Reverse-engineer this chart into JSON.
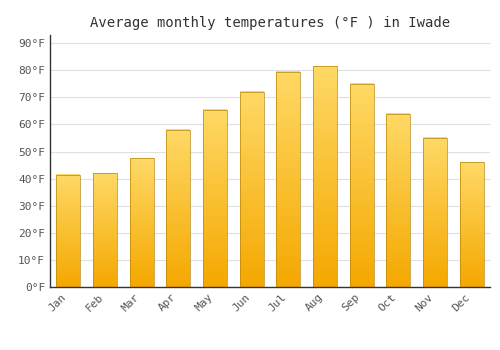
{
  "title": "Average monthly temperatures (°F ) in Iwade",
  "months": [
    "Jan",
    "Feb",
    "Mar",
    "Apr",
    "May",
    "Jun",
    "Jul",
    "Aug",
    "Sep",
    "Oct",
    "Nov",
    "Dec"
  ],
  "values": [
    41.5,
    42,
    47.5,
    58,
    65.5,
    72,
    79.5,
    81.5,
    75,
    64,
    55,
    46
  ],
  "bar_color_bottom": "#F5A800",
  "bar_color_top": "#FFD966",
  "bar_edge_color": "#B8860B",
  "background_color": "#ffffff",
  "grid_color": "#e0e0e0",
  "yticks": [
    0,
    10,
    20,
    30,
    40,
    50,
    60,
    70,
    80,
    90
  ],
  "ylim": [
    0,
    93
  ],
  "title_fontsize": 10,
  "tick_fontsize": 8,
  "tick_color": "#555555",
  "title_color": "#333333"
}
